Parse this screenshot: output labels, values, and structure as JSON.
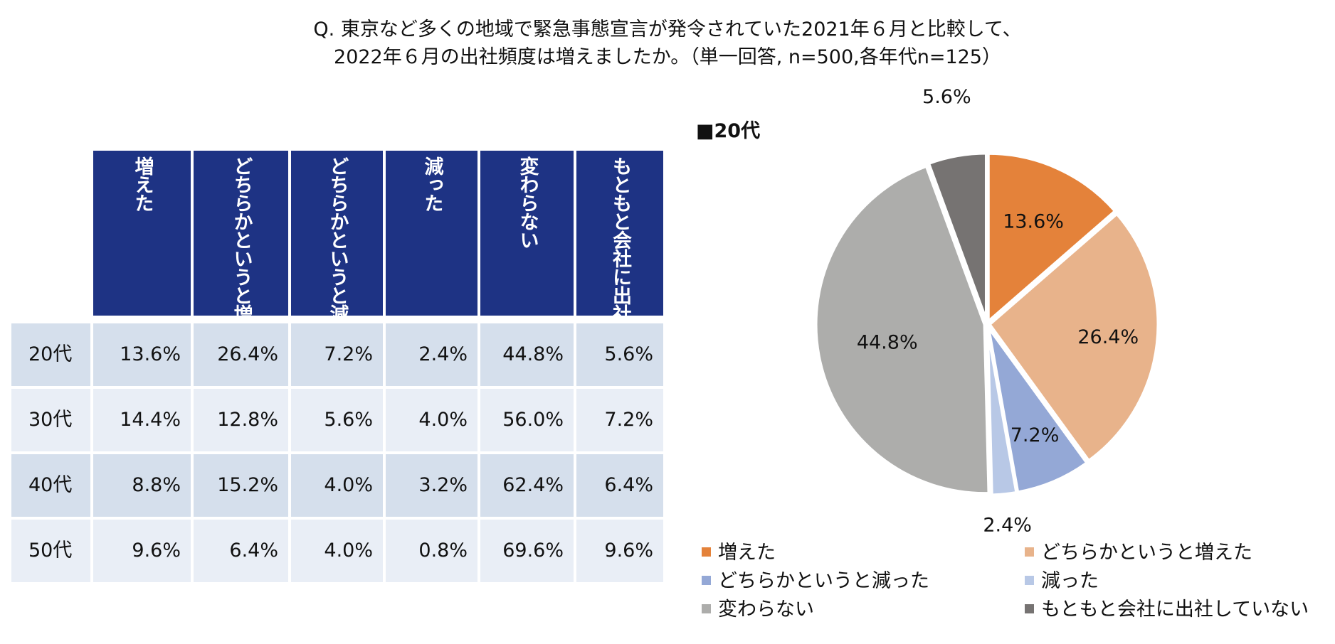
{
  "title": {
    "line1": "Q. 東京など多くの地域で緊急事態宣言が発令されていた2021年６月と比較して、",
    "line2": "2022年６月の出社頻度は増えましたか。（単一回答, n=500,各年代n=125）"
  },
  "table": {
    "headers": [
      "増えた",
      "どちらかというと増えた",
      "どちらかというと減った",
      "減った",
      "変わらない",
      "もともと会社に出社してない"
    ],
    "rows": [
      {
        "label": "20代",
        "values": [
          "13.6%",
          "26.4%",
          "7.2%",
          "2.4%",
          "44.8%",
          "5.6%"
        ]
      },
      {
        "label": "30代",
        "values": [
          "14.4%",
          "12.8%",
          "5.6%",
          "4.0%",
          "56.0%",
          "7.2%"
        ]
      },
      {
        "label": "40代",
        "values": [
          "8.8%",
          "15.2%",
          "4.0%",
          "3.2%",
          "62.4%",
          "6.4%"
        ]
      },
      {
        "label": "50代",
        "values": [
          "9.6%",
          "6.4%",
          "4.0%",
          "0.8%",
          "69.6%",
          "9.6%"
        ]
      }
    ]
  },
  "chart_data": {
    "type": "pie",
    "title": "■20代",
    "categories": [
      "増えた",
      "どちらかというと増えた",
      "どちらかというと減った",
      "減った",
      "変わらない",
      "もともと会社に出社していない"
    ],
    "values": [
      13.6,
      26.4,
      7.2,
      2.4,
      44.8,
      5.6
    ],
    "labels": [
      "13.6%",
      "26.4%",
      "7.2%",
      "2.4%",
      "44.8%",
      "5.6%"
    ],
    "colors": [
      "#e4823a",
      "#e8b38b",
      "#94a8d6",
      "#b8c8e6",
      "#adadab",
      "#767372"
    ],
    "legend_position": "bottom"
  }
}
